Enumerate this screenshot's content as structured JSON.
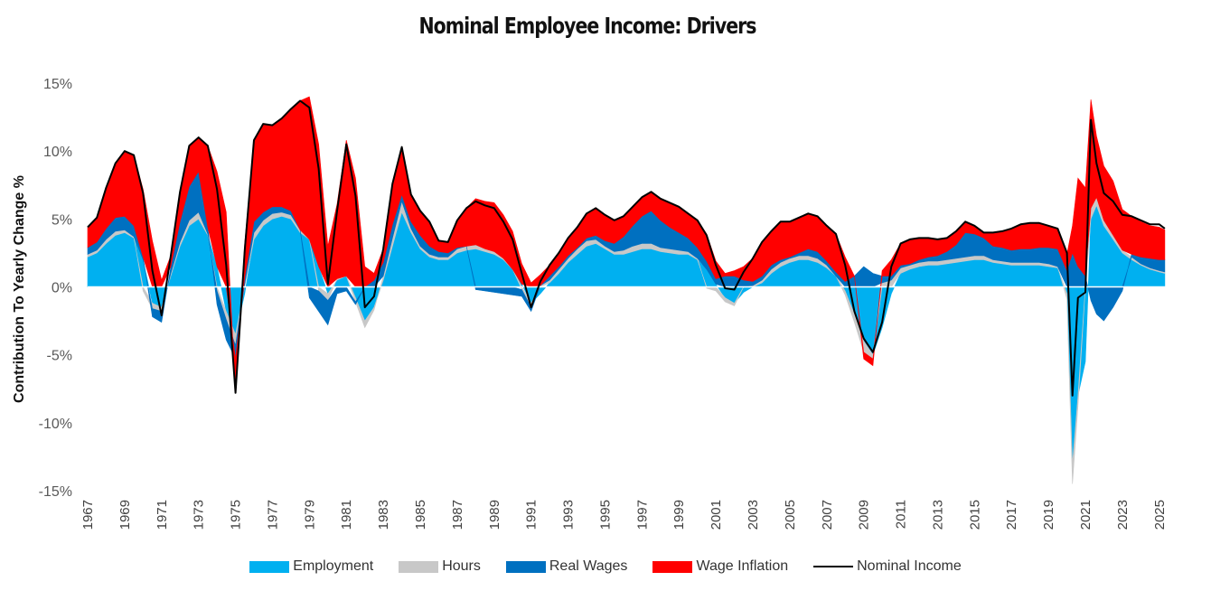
{
  "chart_data": {
    "type": "area",
    "title": "Nominal Employee Income: Drivers",
    "xlabel": "",
    "ylabel": "Contribution To Yearly Change %",
    "xlim": [
      1967,
      2025.5
    ],
    "ylim": [
      -15,
      15
    ],
    "yticks": [
      15,
      10,
      5,
      0,
      -5,
      -10,
      -15
    ],
    "ytick_labels": [
      "15%",
      "10%",
      "5%",
      "0%",
      "-5%",
      "-10%",
      "-15%"
    ],
    "xtick_labels": [
      "1967",
      "1969",
      "1971",
      "1973",
      "1975",
      "1977",
      "1979",
      "1981",
      "1983",
      "1985",
      "1987",
      "1989",
      "1991",
      "1993",
      "1995",
      "1997",
      "1999",
      "2001",
      "2003",
      "2005",
      "2007",
      "2009",
      "2011",
      "2013",
      "2015",
      "2017",
      "2019",
      "2021",
      "2023",
      "2025"
    ],
    "x": [
      1967,
      1967.5,
      1968,
      1968.5,
      1969,
      1969.5,
      1970,
      1970.5,
      1971,
      1971.5,
      1972,
      1972.5,
      1973,
      1973.5,
      1974,
      1974.5,
      1975,
      1975.5,
      1976,
      1976.5,
      1977,
      1977.5,
      1978,
      1978.5,
      1979,
      1979.5,
      1980,
      1980.5,
      1981,
      1981.5,
      1982,
      1982.5,
      1983,
      1983.5,
      1984,
      1984.5,
      1985,
      1985.5,
      1986,
      1986.5,
      1987,
      1987.5,
      1988,
      1988.5,
      1989,
      1989.5,
      1990,
      1990.5,
      1991,
      1991.5,
      1992,
      1992.5,
      1993,
      1993.5,
      1994,
      1994.5,
      1995,
      1995.5,
      1996,
      1996.5,
      1997,
      1997.5,
      1998,
      1998.5,
      1999,
      1999.5,
      2000,
      2000.5,
      2001,
      2001.5,
      2002,
      2002.5,
      2003,
      2003.5,
      2004,
      2004.5,
      2005,
      2005.5,
      2006,
      2006.5,
      2007,
      2007.5,
      2008,
      2008.5,
      2009,
      2009.5,
      2010,
      2010.5,
      2011,
      2011.5,
      2012,
      2012.5,
      2013,
      2013.5,
      2014,
      2014.5,
      2015,
      2015.5,
      2016,
      2016.5,
      2017,
      2017.5,
      2018,
      2018.5,
      2019,
      2019.5,
      2020,
      2020.3,
      2020.6,
      2021,
      2021.3,
      2021.6,
      2022,
      2022.5,
      2023,
      2023.5,
      2024,
      2024.5,
      2025,
      2025.3
    ],
    "series": [
      {
        "name": "Employment",
        "color": "#00B0F0",
        "values": [
          2.2,
          2.5,
          3.2,
          3.8,
          4.0,
          3.6,
          2.0,
          -1.2,
          -1.5,
          0.8,
          3.0,
          4.5,
          5.0,
          3.8,
          1.5,
          -1.8,
          -3.5,
          -0.5,
          3.5,
          4.5,
          5.0,
          5.2,
          5.0,
          4.0,
          3.5,
          1.5,
          -0.5,
          0.5,
          0.8,
          -0.8,
          -2.5,
          -1.5,
          0.5,
          3.0,
          5.5,
          4.0,
          2.8,
          2.2,
          2.0,
          2.0,
          2.5,
          2.7,
          2.8,
          2.6,
          2.4,
          2.0,
          1.3,
          0.2,
          -1.2,
          -0.5,
          0.3,
          1.0,
          1.8,
          2.4,
          3.0,
          3.2,
          2.8,
          2.4,
          2.4,
          2.6,
          2.8,
          2.8,
          2.6,
          2.5,
          2.4,
          2.4,
          2.0,
          1.3,
          0.2,
          -0.8,
          -1.2,
          -0.4,
          0.0,
          0.3,
          1.0,
          1.5,
          1.8,
          2.0,
          2.0,
          1.8,
          1.4,
          0.8,
          -0.3,
          -2.0,
          -4.0,
          -5.0,
          -3.0,
          -0.5,
          1.0,
          1.3,
          1.5,
          1.6,
          1.6,
          1.7,
          1.8,
          1.9,
          2.0,
          2.0,
          1.8,
          1.7,
          1.6,
          1.6,
          1.6,
          1.6,
          1.5,
          1.4,
          -0.5,
          -13.0,
          -8.0,
          -5.5,
          5.0,
          6.0,
          4.5,
          3.5,
          2.5,
          2.0,
          1.6,
          1.3,
          1.1,
          1.0
        ]
      },
      {
        "name": "Hours",
        "color": "#C8C8C8",
        "values": [
          0.2,
          0.2,
          0.3,
          0.3,
          0.2,
          0.1,
          -0.3,
          -0.4,
          -0.3,
          0.2,
          0.3,
          0.4,
          0.5,
          0.1,
          -0.3,
          -0.6,
          -0.8,
          0.2,
          0.5,
          0.4,
          0.4,
          0.3,
          0.3,
          0.2,
          0.0,
          -0.3,
          -0.5,
          0.1,
          0.0,
          -0.3,
          -0.5,
          -0.2,
          0.3,
          0.6,
          0.8,
          0.3,
          0.2,
          0.2,
          0.2,
          0.2,
          0.3,
          0.3,
          0.3,
          0.2,
          0.2,
          0.1,
          0.0,
          -0.2,
          -0.3,
          0.1,
          0.2,
          0.3,
          0.3,
          0.4,
          0.4,
          0.3,
          0.2,
          0.2,
          0.3,
          0.4,
          0.4,
          0.4,
          0.3,
          0.3,
          0.3,
          0.2,
          0.1,
          -0.1,
          -0.3,
          -0.3,
          -0.2,
          0.0,
          0.1,
          0.2,
          0.3,
          0.3,
          0.3,
          0.3,
          0.3,
          0.3,
          0.2,
          0.0,
          -0.3,
          -0.6,
          -0.8,
          -0.3,
          0.3,
          0.5,
          0.4,
          0.3,
          0.3,
          0.3,
          0.3,
          0.3,
          0.3,
          0.3,
          0.3,
          0.3,
          0.2,
          0.2,
          0.2,
          0.2,
          0.2,
          0.2,
          0.2,
          0.1,
          -0.4,
          -1.5,
          -0.8,
          0.0,
          0.8,
          0.6,
          0.4,
          0.3,
          0.2,
          0.2,
          0.1,
          0.1,
          0.1,
          0.1
        ]
      },
      {
        "name": "Real Wages",
        "color": "#0070C0",
        "values": [
          0.5,
          0.6,
          0.8,
          1.0,
          1.0,
          0.8,
          0.2,
          -0.6,
          -0.8,
          0.5,
          1.5,
          2.5,
          3.0,
          0.5,
          -1.0,
          -1.5,
          -1.0,
          0.5,
          0.8,
          0.6,
          0.5,
          0.4,
          0.3,
          0.0,
          -0.8,
          -1.5,
          -1.8,
          -0.5,
          -0.3,
          -0.2,
          0.0,
          0.5,
          1.0,
          1.0,
          0.5,
          0.5,
          0.8,
          0.6,
          0.4,
          0.3,
          0.1,
          0.0,
          -0.2,
          -0.3,
          -0.4,
          -0.5,
          -0.6,
          -0.5,
          -0.3,
          0.0,
          0.3,
          0.2,
          0.2,
          0.1,
          0.2,
          0.3,
          0.4,
          0.6,
          1.0,
          1.5,
          2.0,
          2.4,
          2.0,
          1.6,
          1.3,
          1.0,
          0.8,
          0.6,
          0.4,
          0.8,
          0.8,
          0.5,
          0.3,
          0.3,
          0.3,
          0.2,
          0.1,
          0.2,
          0.5,
          0.5,
          0.3,
          0.3,
          0.4,
          0.8,
          1.5,
          1.0,
          0.5,
          0.3,
          0.2,
          0.1,
          0.2,
          0.3,
          0.4,
          0.6,
          1.0,
          1.8,
          1.6,
          1.3,
          1.0,
          1.0,
          0.9,
          1.0,
          1.0,
          1.1,
          1.2,
          1.3,
          1.2,
          2.5,
          1.5,
          0.8,
          -1.0,
          -2.0,
          -2.5,
          -1.5,
          -0.3,
          0.2,
          0.5,
          0.7,
          0.8,
          0.9
        ]
      },
      {
        "name": "Wage Inflation",
        "color": "#FF0000",
        "values": [
          1.5,
          1.8,
          3.0,
          4.0,
          4.8,
          5.2,
          5.0,
          3.4,
          0.5,
          0.8,
          2.2,
          3.0,
          2.5,
          6.0,
          7.0,
          5.5,
          -2.5,
          2.5,
          6.0,
          6.5,
          6.0,
          6.5,
          7.5,
          9.5,
          10.5,
          9.0,
          3.0,
          5.5,
          10.0,
          8.0,
          1.5,
          0.5,
          1.0,
          3.0,
          3.5,
          2.0,
          1.8,
          1.8,
          0.8,
          0.8,
          2.0,
          2.8,
          3.4,
          3.5,
          3.6,
          3.2,
          2.8,
          1.5,
          0.3,
          0.8,
          0.8,
          1.0,
          1.3,
          1.5,
          1.8,
          2.0,
          1.9,
          1.7,
          1.5,
          1.4,
          1.4,
          1.4,
          1.6,
          1.8,
          1.9,
          1.8,
          2.0,
          2.0,
          1.3,
          0.2,
          0.4,
          1.0,
          1.7,
          2.5,
          2.5,
          2.8,
          2.6,
          2.6,
          2.6,
          2.6,
          2.6,
          2.8,
          1.8,
          0.0,
          -0.5,
          -0.5,
          0.4,
          1.2,
          1.6,
          1.8,
          1.6,
          1.4,
          1.2,
          1.0,
          1.0,
          0.8,
          0.6,
          0.4,
          1.0,
          1.2,
          1.6,
          1.8,
          1.9,
          1.8,
          1.6,
          1.5,
          1.2,
          2.0,
          6.5,
          6.5,
          8.0,
          4.5,
          4.0,
          4.0,
          3.0,
          2.8,
          2.6,
          2.4,
          2.4,
          2.2
        ]
      },
      {
        "name": "Nominal Income",
        "color": "#000000",
        "type": "line",
        "values": [
          4.4,
          5.1,
          7.3,
          9.1,
          10.0,
          9.7,
          6.9,
          1.2,
          -2.1,
          2.3,
          7.0,
          10.4,
          11.0,
          10.4,
          7.2,
          1.6,
          -7.8,
          2.7,
          10.8,
          12.0,
          11.9,
          12.4,
          13.1,
          13.7,
          13.2,
          8.7,
          0.2,
          5.6,
          10.5,
          6.7,
          -1.5,
          -0.7,
          2.8,
          7.6,
          10.3,
          6.8,
          5.6,
          4.8,
          3.4,
          3.3,
          4.9,
          5.8,
          6.3,
          6.0,
          5.8,
          4.8,
          3.5,
          1.0,
          -1.5,
          0.4,
          1.6,
          2.5,
          3.6,
          4.4,
          5.4,
          5.8,
          5.3,
          4.9,
          5.2,
          5.9,
          6.6,
          7.0,
          6.5,
          6.2,
          5.9,
          5.4,
          4.9,
          3.8,
          1.6,
          -0.1,
          -0.2,
          1.1,
          2.1,
          3.3,
          4.1,
          4.8,
          4.8,
          5.1,
          5.4,
          5.2,
          4.5,
          3.9,
          1.6,
          -1.8,
          -3.8,
          -4.8,
          -2.6,
          1.5,
          3.2,
          3.5,
          3.6,
          3.6,
          3.5,
          3.6,
          4.1,
          4.8,
          4.5,
          4.0,
          4.0,
          4.1,
          4.3,
          4.6,
          4.7,
          4.7,
          4.5,
          4.3,
          2.5,
          -8.0,
          -0.8,
          -0.4,
          12.3,
          9.1,
          6.9,
          6.3,
          5.3,
          5.2,
          4.9,
          4.6,
          4.6,
          4.3
        ]
      }
    ],
    "legend_placement": "bottom-center"
  },
  "legend": {
    "employment": "Employment",
    "hours": "Hours",
    "real_wages": "Real Wages",
    "wage_inflation": "Wage Inflation",
    "nominal_income": "Nominal Income"
  },
  "colors": {
    "employment": "#00B0F0",
    "hours": "#C8C8C8",
    "real_wages": "#0070C0",
    "wage_inflation": "#FF0000",
    "nominal_income": "#000000"
  }
}
